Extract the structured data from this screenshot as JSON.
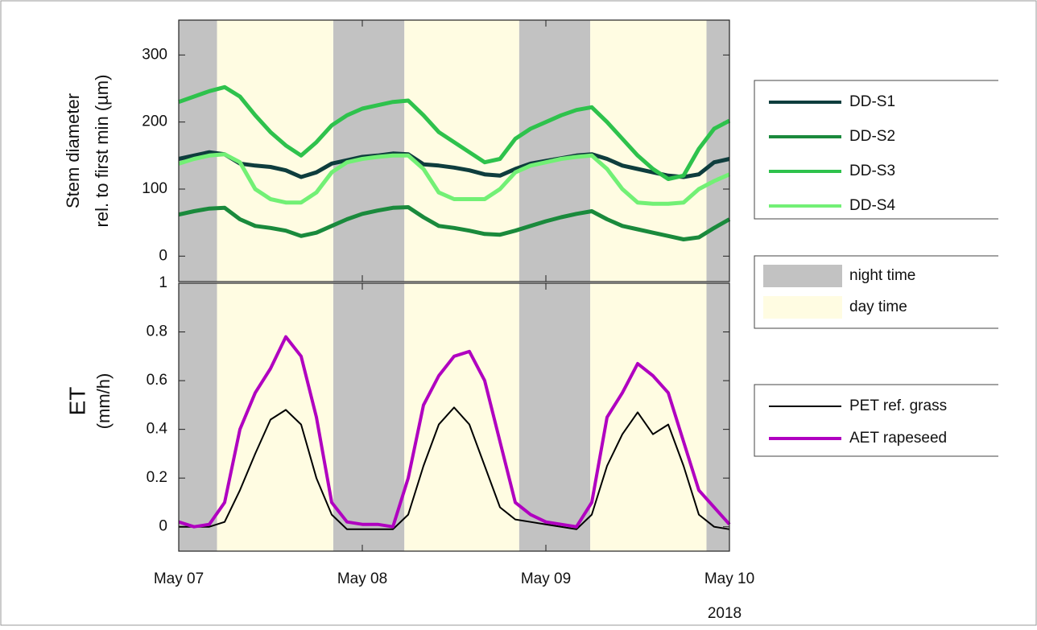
{
  "chart_data": [
    {
      "type": "line",
      "ylabel": [
        "Stem diameter",
        "rel. to first min (µm)"
      ],
      "x": [
        0,
        2,
        4,
        6,
        8,
        10,
        12,
        14,
        16,
        18,
        20,
        22,
        24,
        26,
        28,
        30,
        32,
        34,
        36,
        38,
        40,
        42,
        44,
        46,
        48,
        50,
        52,
        54,
        56,
        58,
        60,
        62,
        64,
        66,
        68,
        70,
        72
      ],
      "xlim": [
        0,
        72
      ],
      "ylim": [
        -38,
        352
      ],
      "yticks": [
        0,
        100,
        200,
        300
      ],
      "series": [
        {
          "name": "DD-S1",
          "color": "#0e3d3d",
          "values": [
            145,
            150,
            155,
            152,
            138,
            135,
            133,
            128,
            118,
            125,
            138,
            143,
            148,
            150,
            153,
            152,
            137,
            135,
            132,
            128,
            122,
            120,
            130,
            138,
            142,
            146,
            150,
            152,
            145,
            135,
            130,
            125,
            120,
            118,
            122,
            140,
            145
          ]
        },
        {
          "name": "DD-S2",
          "color": "#1a8a3c",
          "values": [
            62,
            67,
            71,
            72,
            55,
            45,
            42,
            38,
            30,
            35,
            45,
            55,
            63,
            68,
            72,
            73,
            58,
            45,
            42,
            38,
            33,
            32,
            38,
            45,
            52,
            58,
            63,
            67,
            55,
            45,
            40,
            35,
            30,
            25,
            28,
            42,
            55
          ]
        },
        {
          "name": "DD-S3",
          "color": "#2ec24c",
          "values": [
            230,
            238,
            246,
            252,
            238,
            210,
            185,
            165,
            150,
            170,
            195,
            210,
            220,
            225,
            230,
            232,
            210,
            185,
            170,
            155,
            140,
            145,
            175,
            190,
            200,
            210,
            218,
            222,
            200,
            175,
            150,
            130,
            115,
            120,
            160,
            190,
            202
          ]
        },
        {
          "name": "DD-S4",
          "color": "#72f075",
          "values": [
            138,
            145,
            150,
            152,
            140,
            100,
            85,
            80,
            80,
            95,
            125,
            140,
            145,
            148,
            150,
            150,
            130,
            95,
            85,
            85,
            85,
            100,
            125,
            135,
            140,
            145,
            148,
            150,
            130,
            100,
            80,
            78,
            78,
            80,
            100,
            112,
            122
          ]
        }
      ]
    },
    {
      "type": "line",
      "ylabel": [
        "ET",
        "(mm/h)"
      ],
      "xlabel": "2018",
      "x": [
        0,
        2,
        4,
        6,
        8,
        10,
        12,
        14,
        16,
        18,
        20,
        22,
        24,
        26,
        28,
        30,
        32,
        34,
        36,
        38,
        40,
        42,
        44,
        46,
        48,
        50,
        52,
        54,
        56,
        58,
        60,
        62,
        64,
        66,
        68,
        70,
        72
      ],
      "xlim": [
        0,
        72
      ],
      "xticks": [
        {
          "value": 0,
          "label": "May 07"
        },
        {
          "value": 24,
          "label": "May 08"
        },
        {
          "value": 48,
          "label": "May 09"
        },
        {
          "value": 72,
          "label": "May 10"
        }
      ],
      "ylim": [
        -0.1,
        1
      ],
      "yticks": [
        0,
        0.2,
        0.4,
        0.6,
        0.8,
        1
      ],
      "series": [
        {
          "name": "PET ref. grass",
          "color": "#000000",
          "values": [
            0,
            0,
            0,
            0.02,
            0.15,
            0.3,
            0.44,
            0.48,
            0.42,
            0.2,
            0.05,
            -0.01,
            -0.01,
            -0.01,
            -0.01,
            0.05,
            0.25,
            0.42,
            0.49,
            0.42,
            0.25,
            0.08,
            0.03,
            0.02,
            0.01,
            0,
            -0.01,
            0.05,
            0.25,
            0.38,
            0.47,
            0.38,
            0.42,
            0.25,
            0.05,
            0,
            -0.01
          ]
        },
        {
          "name": "AET rapeseed",
          "color": "#b000c0",
          "values": [
            0.02,
            0,
            0.01,
            0.1,
            0.4,
            0.55,
            0.65,
            0.78,
            0.7,
            0.45,
            0.1,
            0.02,
            0.01,
            0.01,
            0,
            0.2,
            0.5,
            0.62,
            0.7,
            0.72,
            0.6,
            0.35,
            0.1,
            0.05,
            0.02,
            0.01,
            0,
            0.1,
            0.45,
            0.55,
            0.67,
            0.62,
            0.55,
            0.35,
            0.15,
            0.08,
            0.01
          ]
        }
      ]
    }
  ],
  "shading": [
    {
      "name": "night time",
      "color": "#c2c2c2",
      "ranges": [
        [
          0,
          5
        ],
        [
          20.2,
          29.5
        ],
        [
          44.5,
          53.8
        ],
        [
          69,
          72
        ]
      ]
    },
    {
      "name": "day time",
      "color": "#fffce2",
      "ranges": [
        [
          5,
          20.2
        ],
        [
          29.5,
          44.5
        ],
        [
          53.8,
          69
        ]
      ]
    }
  ]
}
